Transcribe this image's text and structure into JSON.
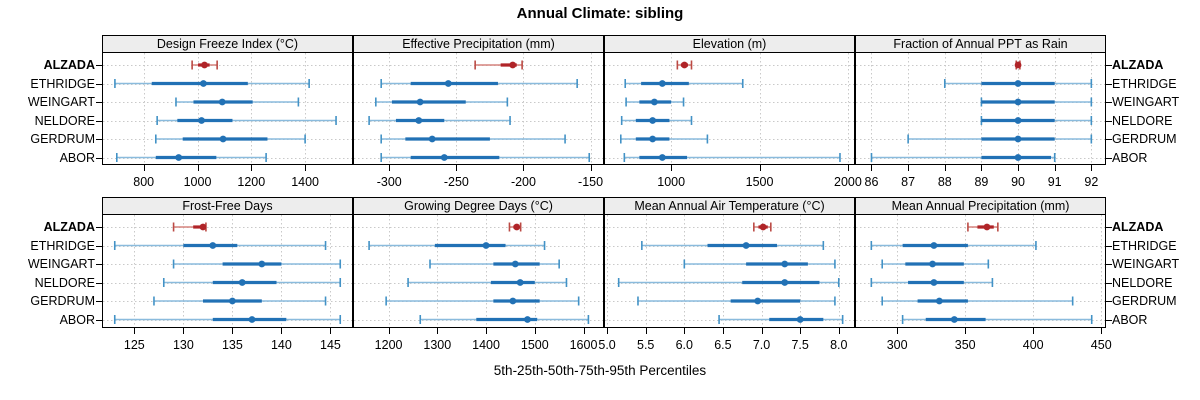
{
  "title": "Annual Climate: sibling",
  "xlabel": "5th-25th-50th-75th-95th Percentiles",
  "entities": [
    "ALZADA",
    "ETHRIDGE",
    "WEINGART",
    "NELDORE",
    "GERDRUM",
    "ABOR"
  ],
  "highlight_entity": "ALZADA",
  "percentile_labels": [
    "5th",
    "25th",
    "50th",
    "75th",
    "95th"
  ],
  "colors": {
    "highlight_dark": "#b02428",
    "highlight_light": "#d6847e",
    "highlight_cap": "#bb4a44",
    "normal_dark": "#2171b5",
    "normal_light": "#8abbdd",
    "normal_cap": "#4292c6",
    "grid": "#c9c9c9",
    "strip_bg": "#ededed",
    "panel_border": "#000000",
    "text": "#000000"
  },
  "chart_data": [
    {
      "type": "scatter",
      "subtype": "percentile-dotplot",
      "title": "Design Freeze Index (°C)",
      "row": 0,
      "col": 0,
      "xlim": [
        645,
        1578
      ],
      "tick_values": [
        800,
        1000,
        1200,
        1400
      ],
      "tick_labels": [
        "800",
        "1000",
        "1200",
        "1400"
      ],
      "series": [
        {
          "name": "ALZADA",
          "percentiles": [
            980,
            1002,
            1026,
            1045,
            1073
          ]
        },
        {
          "name": "ETHRIDGE",
          "percentiles": [
            693,
            830,
            1022,
            1187,
            1415
          ]
        },
        {
          "name": "WEINGART",
          "percentiles": [
            920,
            985,
            1092,
            1205,
            1375
          ]
        },
        {
          "name": "NELDORE",
          "percentiles": [
            850,
            925,
            1015,
            1130,
            1515
          ]
        },
        {
          "name": "GERDRUM",
          "percentiles": [
            845,
            945,
            1095,
            1260,
            1400
          ]
        },
        {
          "name": "ABOR",
          "percentiles": [
            700,
            845,
            930,
            1070,
            1255
          ]
        }
      ]
    },
    {
      "type": "scatter",
      "subtype": "percentile-dotplot",
      "title": "Effective Precipitation (mm)",
      "row": 0,
      "col": 1,
      "xlim": [
        -327,
        -140
      ],
      "tick_values": [
        -300,
        -250,
        -200,
        -150
      ],
      "tick_labels": [
        "-300",
        "-250",
        "-200",
        "-150"
      ],
      "series": [
        {
          "name": "ALZADA",
          "percentiles": [
            -236,
            -217,
            -208,
            -205,
            -201
          ]
        },
        {
          "name": "ETHRIDGE",
          "percentiles": [
            -306,
            -284,
            -256,
            -219,
            -160
          ]
        },
        {
          "name": "WEINGART",
          "percentiles": [
            -310,
            -298,
            -277,
            -243,
            -212
          ]
        },
        {
          "name": "NELDORE",
          "percentiles": [
            -315,
            -295,
            -278,
            -259,
            -210
          ]
        },
        {
          "name": "GERDRUM",
          "percentiles": [
            -306,
            -288,
            -268,
            -225,
            -169
          ]
        },
        {
          "name": "ABOR",
          "percentiles": [
            -306,
            -284,
            -259,
            -218,
            -151
          ]
        }
      ]
    },
    {
      "type": "scatter",
      "subtype": "percentile-dotplot",
      "title": "Elevation (m)",
      "row": 0,
      "col": 2,
      "xlim": [
        620,
        2040
      ],
      "tick_values": [
        1000,
        1500,
        2000
      ],
      "tick_labels": [
        "1000",
        "1500",
        "2000"
      ],
      "series": [
        {
          "name": "ALZADA",
          "percentiles": [
            1035,
            1055,
            1075,
            1095,
            1115
          ]
        },
        {
          "name": "ETHRIDGE",
          "percentiles": [
            740,
            830,
            950,
            1100,
            1405
          ]
        },
        {
          "name": "WEINGART",
          "percentiles": [
            745,
            820,
            905,
            1000,
            1070
          ]
        },
        {
          "name": "NELDORE",
          "percentiles": [
            720,
            800,
            895,
            990,
            1115
          ]
        },
        {
          "name": "GERDRUM",
          "percentiles": [
            715,
            800,
            895,
            990,
            1205
          ]
        },
        {
          "name": "ABOR",
          "percentiles": [
            735,
            820,
            950,
            1090,
            1955
          ]
        }
      ]
    },
    {
      "type": "scatter",
      "subtype": "percentile-dotplot",
      "title": "Fraction of Annual PPT as Rain",
      "row": 0,
      "col": 3,
      "xlim": [
        85.55,
        92.4
      ],
      "tick_values": [
        86,
        87,
        88,
        89,
        90,
        91,
        92
      ],
      "tick_labels": [
        "86",
        "87",
        "88",
        "89",
        "90",
        "91",
        "92"
      ],
      "series": [
        {
          "name": "ALZADA",
          "percentiles": [
            89.95,
            90,
            90,
            90,
            90.05
          ]
        },
        {
          "name": "ETHRIDGE",
          "percentiles": [
            88,
            89,
            90,
            91,
            92
          ]
        },
        {
          "name": "WEINGART",
          "percentiles": [
            89,
            89,
            90,
            91,
            92
          ]
        },
        {
          "name": "NELDORE",
          "percentiles": [
            89,
            89,
            90,
            91,
            92
          ]
        },
        {
          "name": "GERDRUM",
          "percentiles": [
            87,
            89,
            90,
            91,
            92
          ]
        },
        {
          "name": "ABOR",
          "percentiles": [
            86,
            89,
            90,
            90.9,
            91
          ]
        }
      ]
    },
    {
      "type": "scatter",
      "subtype": "percentile-dotplot",
      "title": "Frost-Free Days",
      "row": 1,
      "col": 0,
      "xlim": [
        121.7,
        147.3
      ],
      "tick_values": [
        125,
        130,
        135,
        140,
        145
      ],
      "tick_labels": [
        "125",
        "130",
        "135",
        "140",
        "145"
      ],
      "series": [
        {
          "name": "ALZADA",
          "percentiles": [
            129,
            131,
            132,
            132.1,
            132.3
          ]
        },
        {
          "name": "ETHRIDGE",
          "percentiles": [
            123,
            130,
            133,
            135.5,
            144.5
          ]
        },
        {
          "name": "WEINGART",
          "percentiles": [
            129,
            134,
            138,
            140,
            146
          ]
        },
        {
          "name": "NELDORE",
          "percentiles": [
            128,
            133,
            136,
            139.5,
            146
          ]
        },
        {
          "name": "GERDRUM",
          "percentiles": [
            127,
            132,
            135,
            138,
            144.5
          ]
        },
        {
          "name": "ABOR",
          "percentiles": [
            123,
            133,
            137,
            140.5,
            146
          ]
        }
      ]
    },
    {
      "type": "scatter",
      "subtype": "percentile-dotplot",
      "title": "Growing Degree Days (°C)",
      "row": 1,
      "col": 1,
      "xlim": [
        1127,
        1642
      ],
      "tick_values": [
        1200,
        1300,
        1400,
        1500,
        1600
      ],
      "tick_labels": [
        "1200",
        "1300",
        "1400",
        "1500",
        "1600"
      ],
      "series": [
        {
          "name": "ALZADA",
          "percentiles": [
            1448,
            1456,
            1463,
            1467,
            1471
          ]
        },
        {
          "name": "ETHRIDGE",
          "percentiles": [
            1160,
            1295,
            1400,
            1440,
            1520
          ]
        },
        {
          "name": "WEINGART",
          "percentiles": [
            1285,
            1415,
            1460,
            1510,
            1550
          ]
        },
        {
          "name": "NELDORE",
          "percentiles": [
            1240,
            1410,
            1470,
            1500,
            1565
          ]
        },
        {
          "name": "GERDRUM",
          "percentiles": [
            1195,
            1415,
            1455,
            1510,
            1590
          ]
        },
        {
          "name": "ABOR",
          "percentiles": [
            1265,
            1380,
            1485,
            1505,
            1610
          ]
        }
      ]
    },
    {
      "type": "scatter",
      "subtype": "percentile-dotplot",
      "title": "Mean Annual Air Temperature (°C)",
      "row": 1,
      "col": 2,
      "xlim": [
        4.96,
        8.21
      ],
      "tick_values": [
        5.0,
        5.5,
        6.0,
        6.5,
        7.0,
        7.5,
        8.0
      ],
      "tick_labels": [
        "5.0",
        "5.5",
        "6.0",
        "6.5",
        "7.0",
        "7.5",
        "8.0"
      ],
      "series": [
        {
          "name": "ALZADA",
          "percentiles": [
            6.9,
            6.96,
            7.02,
            7.08,
            7.12
          ]
        },
        {
          "name": "ETHRIDGE",
          "percentiles": [
            5.45,
            6.3,
            6.8,
            7.2,
            7.8
          ]
        },
        {
          "name": "WEINGART",
          "percentiles": [
            6.0,
            6.8,
            7.3,
            7.6,
            7.95
          ]
        },
        {
          "name": "NELDORE",
          "percentiles": [
            5.15,
            6.75,
            7.3,
            7.75,
            8.0
          ]
        },
        {
          "name": "GERDRUM",
          "percentiles": [
            5.4,
            6.6,
            6.95,
            7.5,
            7.95
          ]
        },
        {
          "name": "ABOR",
          "percentiles": [
            6.45,
            7.1,
            7.5,
            7.8,
            8.05
          ]
        }
      ]
    },
    {
      "type": "scatter",
      "subtype": "percentile-dotplot",
      "title": "Mean Annual Precipitation (mm)",
      "row": 1,
      "col": 3,
      "xlim": [
        269,
        453.5
      ],
      "tick_values": [
        300,
        350,
        400,
        450
      ],
      "tick_labels": [
        "300",
        "350",
        "400",
        "450"
      ],
      "series": [
        {
          "name": "ALZADA",
          "percentiles": [
            352,
            359,
            366,
            371,
            374
          ]
        },
        {
          "name": "ETHRIDGE",
          "percentiles": [
            281,
            304,
            327,
            352,
            402
          ]
        },
        {
          "name": "WEINGART",
          "percentiles": [
            289,
            306,
            326,
            349,
            367
          ]
        },
        {
          "name": "NELDORE",
          "percentiles": [
            281,
            308,
            327,
            349,
            370
          ]
        },
        {
          "name": "GERDRUM",
          "percentiles": [
            289,
            315,
            331,
            352,
            429
          ]
        },
        {
          "name": "ABOR",
          "percentiles": [
            304,
            321,
            342,
            365,
            443
          ]
        }
      ]
    }
  ]
}
